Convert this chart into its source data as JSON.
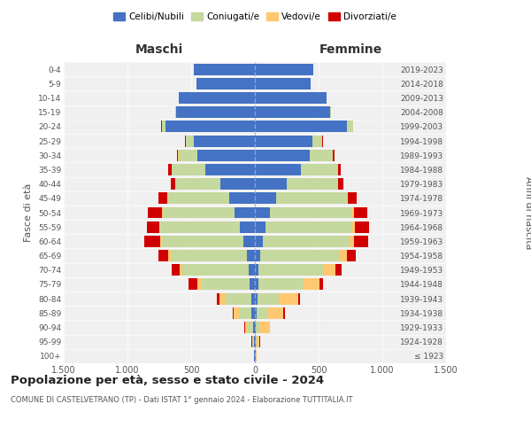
{
  "age_groups": [
    "100+",
    "95-99",
    "90-94",
    "85-89",
    "80-84",
    "75-79",
    "70-74",
    "65-69",
    "60-64",
    "55-59",
    "50-54",
    "45-49",
    "40-44",
    "35-39",
    "30-34",
    "25-29",
    "20-24",
    "15-19",
    "10-14",
    "5-9",
    "0-4"
  ],
  "birth_years": [
    "≤ 1923",
    "1924-1928",
    "1929-1933",
    "1934-1938",
    "1939-1943",
    "1944-1948",
    "1949-1953",
    "1954-1958",
    "1959-1963",
    "1964-1968",
    "1969-1973",
    "1974-1978",
    "1979-1983",
    "1984-1988",
    "1989-1993",
    "1994-1998",
    "1999-2003",
    "2004-2008",
    "2009-2013",
    "2014-2018",
    "2019-2023"
  ],
  "males": {
    "celibi": [
      5,
      8,
      15,
      25,
      30,
      40,
      50,
      60,
      90,
      120,
      160,
      200,
      270,
      390,
      450,
      480,
      700,
      620,
      600,
      460,
      480
    ],
    "coniugati": [
      3,
      10,
      40,
      100,
      200,
      380,
      520,
      600,
      640,
      620,
      560,
      480,
      350,
      260,
      150,
      60,
      30,
      5,
      0,
      0,
      0
    ],
    "vedovi": [
      1,
      5,
      20,
      40,
      50,
      30,
      20,
      20,
      15,
      10,
      8,
      5,
      3,
      2,
      1,
      1,
      1,
      0,
      0,
      0,
      0
    ],
    "divorziati": [
      0,
      2,
      5,
      10,
      20,
      70,
      60,
      80,
      120,
      100,
      110,
      70,
      40,
      30,
      10,
      5,
      2,
      0,
      0,
      0,
      0
    ]
  },
  "females": {
    "nubili": [
      5,
      8,
      10,
      15,
      20,
      25,
      30,
      40,
      60,
      80,
      120,
      170,
      250,
      360,
      430,
      450,
      720,
      590,
      560,
      440,
      460
    ],
    "coniugate": [
      2,
      5,
      25,
      80,
      170,
      360,
      510,
      620,
      680,
      680,
      640,
      550,
      400,
      290,
      180,
      80,
      50,
      5,
      0,
      0,
      0
    ],
    "vedove": [
      5,
      25,
      80,
      130,
      150,
      120,
      90,
      60,
      40,
      25,
      20,
      10,
      5,
      3,
      2,
      1,
      1,
      0,
      0,
      0,
      0
    ],
    "divorziate": [
      0,
      2,
      5,
      10,
      15,
      30,
      50,
      70,
      110,
      110,
      100,
      70,
      40,
      20,
      10,
      5,
      2,
      0,
      0,
      0,
      0
    ]
  },
  "colors": {
    "celibi": "#4472C4",
    "coniugati": "#c5d89d",
    "vedovi": "#ffc870",
    "divorziati": "#d00000"
  },
  "xlim": 1500,
  "title": "Popolazione per età, sesso e stato civile - 2024",
  "subtitle": "COMUNE DI CASTELVETRANO (TP) - Dati ISTAT 1° gennaio 2024 - Elaborazione TUTTITALIA.IT",
  "ylabel_left": "Fasce di età",
  "ylabel_right": "Anni di nascita",
  "xlabel_maschi": "Maschi",
  "xlabel_femmine": "Femmine",
  "bg_color": "#ffffff",
  "plot_bg": "#f0f0f0",
  "grid_color": "#ffffff",
  "legend_labels": [
    "Celibi/Nubili",
    "Coniugati/e",
    "Vedovi/e",
    "Divorziati/e"
  ]
}
